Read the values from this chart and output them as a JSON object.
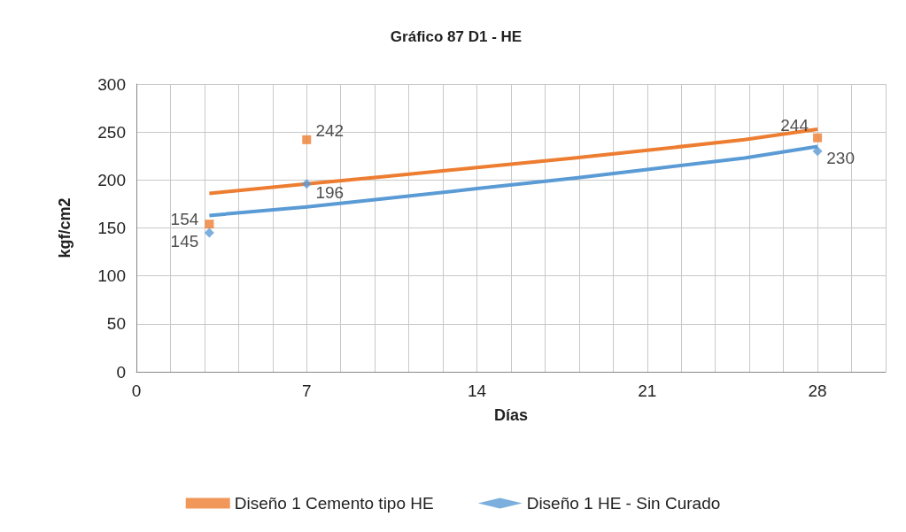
{
  "chart_data": {
    "type": "scatter",
    "title": "Gráfico 87 D1 - HE",
    "xlabel": "Días",
    "ylabel": "kgf/cm2",
    "xlim": [
      0,
      30.8
    ],
    "xticks": [
      0,
      {
        "value": 1.4,
        "label": null
      },
      {
        "value": 2.8,
        "label": null
      },
      {
        "value": 4.2,
        "label": null
      },
      {
        "value": 5.6,
        "label": null
      },
      7,
      {
        "value": 8.4,
        "label": null
      },
      {
        "value": 9.8,
        "label": null
      },
      {
        "value": 11.2,
        "label": null
      },
      {
        "value": 12.6,
        "label": null
      },
      14,
      {
        "value": 15.4,
        "label": null
      },
      {
        "value": 16.8,
        "label": null
      },
      {
        "value": 18.2,
        "label": null
      },
      {
        "value": 19.6,
        "label": null
      },
      21,
      {
        "value": 22.4,
        "label": null
      },
      {
        "value": 23.8,
        "label": null
      },
      {
        "value": 25.2,
        "label": null
      },
      {
        "value": 26.6,
        "label": null
      },
      28,
      {
        "value": 29.4,
        "label": null
      },
      {
        "value": 30.8,
        "label": null
      }
    ],
    "ylim": [
      0,
      300
    ],
    "yticks": [
      0,
      50,
      100,
      150,
      200,
      250,
      300
    ],
    "grid": true,
    "legend": "bottom",
    "series": [
      {
        "name": "Diseño 1 Cemento tipo HE",
        "color": "#ed7d31",
        "marker": "square",
        "x": [
          3,
          7,
          28
        ],
        "values": [
          154,
          242,
          244
        ],
        "value_labels": [
          "154",
          "242",
          "244"
        ]
      },
      {
        "name": "Diseño 1 HE - Sin Curado",
        "color": "#5b9bd5",
        "marker": "diamond",
        "x": [
          3,
          7,
          28
        ],
        "values": [
          145,
          196,
          230
        ],
        "value_labels": [
          "145",
          "196",
          "230"
        ]
      },
      {
        "type": "line",
        "color": "#ed7d31",
        "marker": "none",
        "x": [
          3,
          7,
          10,
          14,
          18,
          21,
          25,
          28
        ],
        "values": [
          186,
          196,
          203,
          213,
          223,
          231,
          242,
          253
        ]
      },
      {
        "type": "line",
        "color": "#5b9bd5",
        "marker": "none",
        "x": [
          3,
          7,
          10,
          14,
          18,
          21,
          25,
          28
        ],
        "values": [
          163,
          172,
          180,
          191,
          202,
          211,
          223,
          235
        ]
      }
    ]
  }
}
